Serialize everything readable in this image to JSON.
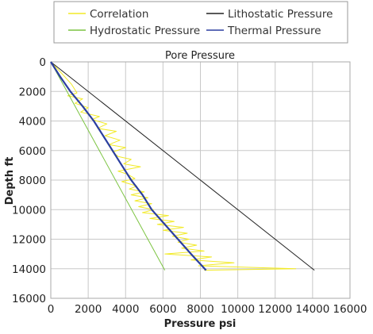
{
  "chart_data": {
    "type": "line",
    "title": "Pore Pressure",
    "xlabel": "Pressure psi",
    "ylabel": "Depth ft",
    "xlim": [
      0,
      16000
    ],
    "ylim": [
      0,
      16000
    ],
    "y_inverted": true,
    "grid": true,
    "legend_position": "top",
    "x_ticks": [
      "0",
      "2000",
      "4000",
      "6000",
      "8000",
      "10000",
      "12000",
      "14000",
      "16000"
    ],
    "y_ticks": [
      "0",
      "2000",
      "4000",
      "6000",
      "8000",
      "10000",
      "12000",
      "14000",
      "16000"
    ],
    "colors": {
      "correlation": "#f2ea27",
      "hydrostatic": "#7cc442",
      "lithostatic": "#222222",
      "thermal": "#2b3fa0",
      "grid": "#c8c8c8",
      "legend_border": "#999999"
    },
    "legend": [
      {
        "key": "correlation",
        "label": "Correlation"
      },
      {
        "key": "lithostatic",
        "label": "Lithostatic Pressure"
      },
      {
        "key": "hydrostatic",
        "label": "Hydrostatic Pressure"
      },
      {
        "key": "thermal",
        "label": "Thermal Pressure"
      }
    ],
    "series": [
      {
        "name": "Hydrostatic Pressure",
        "key": "hydrostatic",
        "points": [
          [
            0,
            0
          ],
          [
            6100,
            14100
          ]
        ]
      },
      {
        "name": "Lithostatic Pressure",
        "key": "lithostatic",
        "points": [
          [
            0,
            0
          ],
          [
            14100,
            14100
          ]
        ]
      },
      {
        "name": "Thermal Pressure",
        "key": "thermal",
        "points": [
          [
            0,
            0
          ],
          [
            500,
            1000
          ],
          [
            1050,
            2000
          ],
          [
            1700,
            3000
          ],
          [
            2300,
            4000
          ],
          [
            2800,
            5000
          ],
          [
            3300,
            6000
          ],
          [
            3800,
            7000
          ],
          [
            4300,
            8000
          ],
          [
            4900,
            9000
          ],
          [
            5400,
            10000
          ],
          [
            6100,
            11000
          ],
          [
            6800,
            12000
          ],
          [
            7500,
            13000
          ],
          [
            8300,
            14100
          ]
        ]
      },
      {
        "name": "Correlation",
        "key": "correlation",
        "points": [
          [
            0,
            0
          ],
          [
            600,
            800
          ],
          [
            1100,
            1500
          ],
          [
            1400,
            2100
          ],
          [
            900,
            2300
          ],
          [
            1700,
            2500
          ],
          [
            1300,
            2800
          ],
          [
            2000,
            3100
          ],
          [
            1600,
            3400
          ],
          [
            2600,
            3700
          ],
          [
            2200,
            3900
          ],
          [
            3000,
            4200
          ],
          [
            2500,
            4500
          ],
          [
            3500,
            4700
          ],
          [
            2900,
            5000
          ],
          [
            3700,
            5300
          ],
          [
            3100,
            5600
          ],
          [
            4000,
            5800
          ],
          [
            3300,
            6100
          ],
          [
            3600,
            6400
          ],
          [
            4300,
            6600
          ],
          [
            3900,
            6900
          ],
          [
            4800,
            7100
          ],
          [
            3600,
            7400
          ],
          [
            4100,
            7600
          ],
          [
            4500,
            7900
          ],
          [
            3800,
            8100
          ],
          [
            4600,
            8400
          ],
          [
            4200,
            8600
          ],
          [
            5000,
            8800
          ],
          [
            4300,
            9000
          ],
          [
            5200,
            9200
          ],
          [
            4500,
            9400
          ],
          [
            5400,
            9600
          ],
          [
            4700,
            9800
          ],
          [
            5500,
            10000
          ],
          [
            4900,
            10200
          ],
          [
            6300,
            10400
          ],
          [
            5300,
            10600
          ],
          [
            6600,
            10800
          ],
          [
            5700,
            11000
          ],
          [
            7100,
            11200
          ],
          [
            6000,
            11400
          ],
          [
            7300,
            11600
          ],
          [
            6500,
            11800
          ],
          [
            7400,
            12000
          ],
          [
            6800,
            12200
          ],
          [
            7800,
            12400
          ],
          [
            7000,
            12600
          ],
          [
            8200,
            12800
          ],
          [
            6100,
            13000
          ],
          [
            8600,
            13200
          ],
          [
            7500,
            13400
          ],
          [
            9800,
            13600
          ],
          [
            7900,
            13800
          ],
          [
            13100,
            14000
          ],
          [
            8200,
            14100
          ]
        ]
      }
    ]
  }
}
